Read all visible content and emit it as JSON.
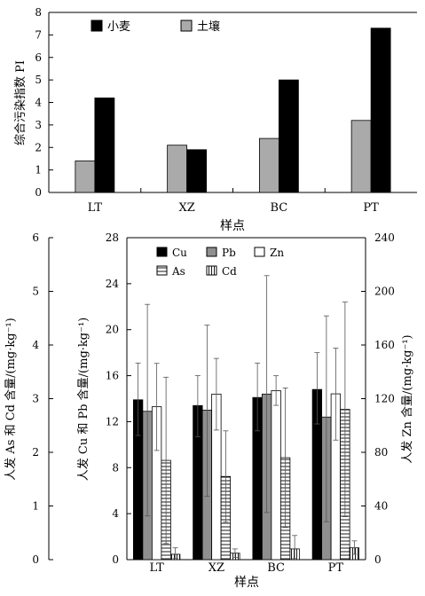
{
  "chart_data": [
    {
      "type": "bar",
      "categories": [
        "LT",
        "XZ",
        "BC",
        "PT"
      ],
      "series": [
        {
          "name": "小麦",
          "values": [
            4.2,
            1.9,
            5.0,
            7.3
          ],
          "color": "#000000",
          "pattern": "solid"
        },
        {
          "name": "土壤",
          "values": [
            1.4,
            2.1,
            2.4,
            3.2
          ],
          "color": "#aaaaaa",
          "pattern": "solid"
        }
      ],
      "bar_order": [
        "土壤",
        "小麦"
      ],
      "xlabel": "样点",
      "ylabel": "综合污染指数 PI",
      "ylim": [
        0,
        8
      ],
      "yticks": [
        "0",
        "1",
        "2",
        "3",
        "4",
        "5",
        "6",
        "7",
        "8"
      ],
      "legend": "top-left",
      "grid": false
    },
    {
      "type": "bar",
      "categories": [
        "LT",
        "XZ",
        "BC",
        "PT"
      ],
      "series": [
        {
          "name": "Cu",
          "axis": "middle",
          "pattern": "solid-black",
          "values": [
            13.9,
            13.4,
            14.1,
            14.8
          ],
          "err_high": [
            17.1,
            16.0,
            17.1,
            18.0
          ],
          "err_low": [
            10.8,
            10.7,
            11.2,
            11.8
          ]
        },
        {
          "name": "Pb",
          "axis": "middle",
          "pattern": "solid-gray",
          "values": [
            12.9,
            13.0,
            14.4,
            12.4
          ],
          "err_high": [
            22.2,
            20.4,
            24.7,
            21.2
          ],
          "err_low": [
            3.8,
            5.5,
            4.1,
            3.3
          ]
        },
        {
          "name": "Zn",
          "axis": "right",
          "pattern": "white",
          "values": [
            114.0,
            123.4,
            126.0,
            123.6
          ],
          "err_high": [
            146.3,
            150.0,
            137.1,
            157.7
          ],
          "err_low": [
            81.4,
            96.6,
            115.0,
            89.1
          ]
        },
        {
          "name": "As",
          "axis": "left",
          "pattern": "horizontal-lines",
          "values": [
            1.85,
            1.55,
            1.9,
            2.8
          ],
          "err_high": [
            3.4,
            2.4,
            3.2,
            4.8
          ],
          "err_low": [
            0.3,
            0.7,
            0.6,
            0.8
          ]
        },
        {
          "name": "Cd",
          "axis": "left",
          "pattern": "vertical-lines",
          "values": [
            0.1,
            0.12,
            0.2,
            0.22
          ],
          "err_high": [
            0.22,
            0.2,
            0.45,
            0.35
          ],
          "err_low": [
            0.02,
            0.04,
            0.02,
            0.1
          ]
        }
      ],
      "bar_order": [
        "Cu",
        "Pb",
        "Zn",
        "As",
        "Cd"
      ],
      "xlabel": "样点",
      "left_axis": {
        "label": "人发 As 和 Cd 含量/(mg·kg⁻¹)",
        "ylim": [
          0,
          6
        ],
        "ticks": [
          "0",
          "1",
          "2",
          "3",
          "4",
          "5",
          "6"
        ]
      },
      "middle_axis": {
        "label": "人发 Cu 和 Pb 含量/(mg·kg⁻¹)",
        "ylim": [
          0,
          28
        ],
        "ticks": [
          "0",
          "4",
          "8",
          "12",
          "16",
          "20",
          "24",
          "28"
        ]
      },
      "right_axis": {
        "label": "人发 Zn 含量/(mg·kg⁻¹)",
        "ylim": [
          0,
          240
        ],
        "ticks": [
          "0",
          "40",
          "80",
          "120",
          "160",
          "200",
          "240"
        ]
      },
      "legend": "top",
      "grid": false
    }
  ]
}
